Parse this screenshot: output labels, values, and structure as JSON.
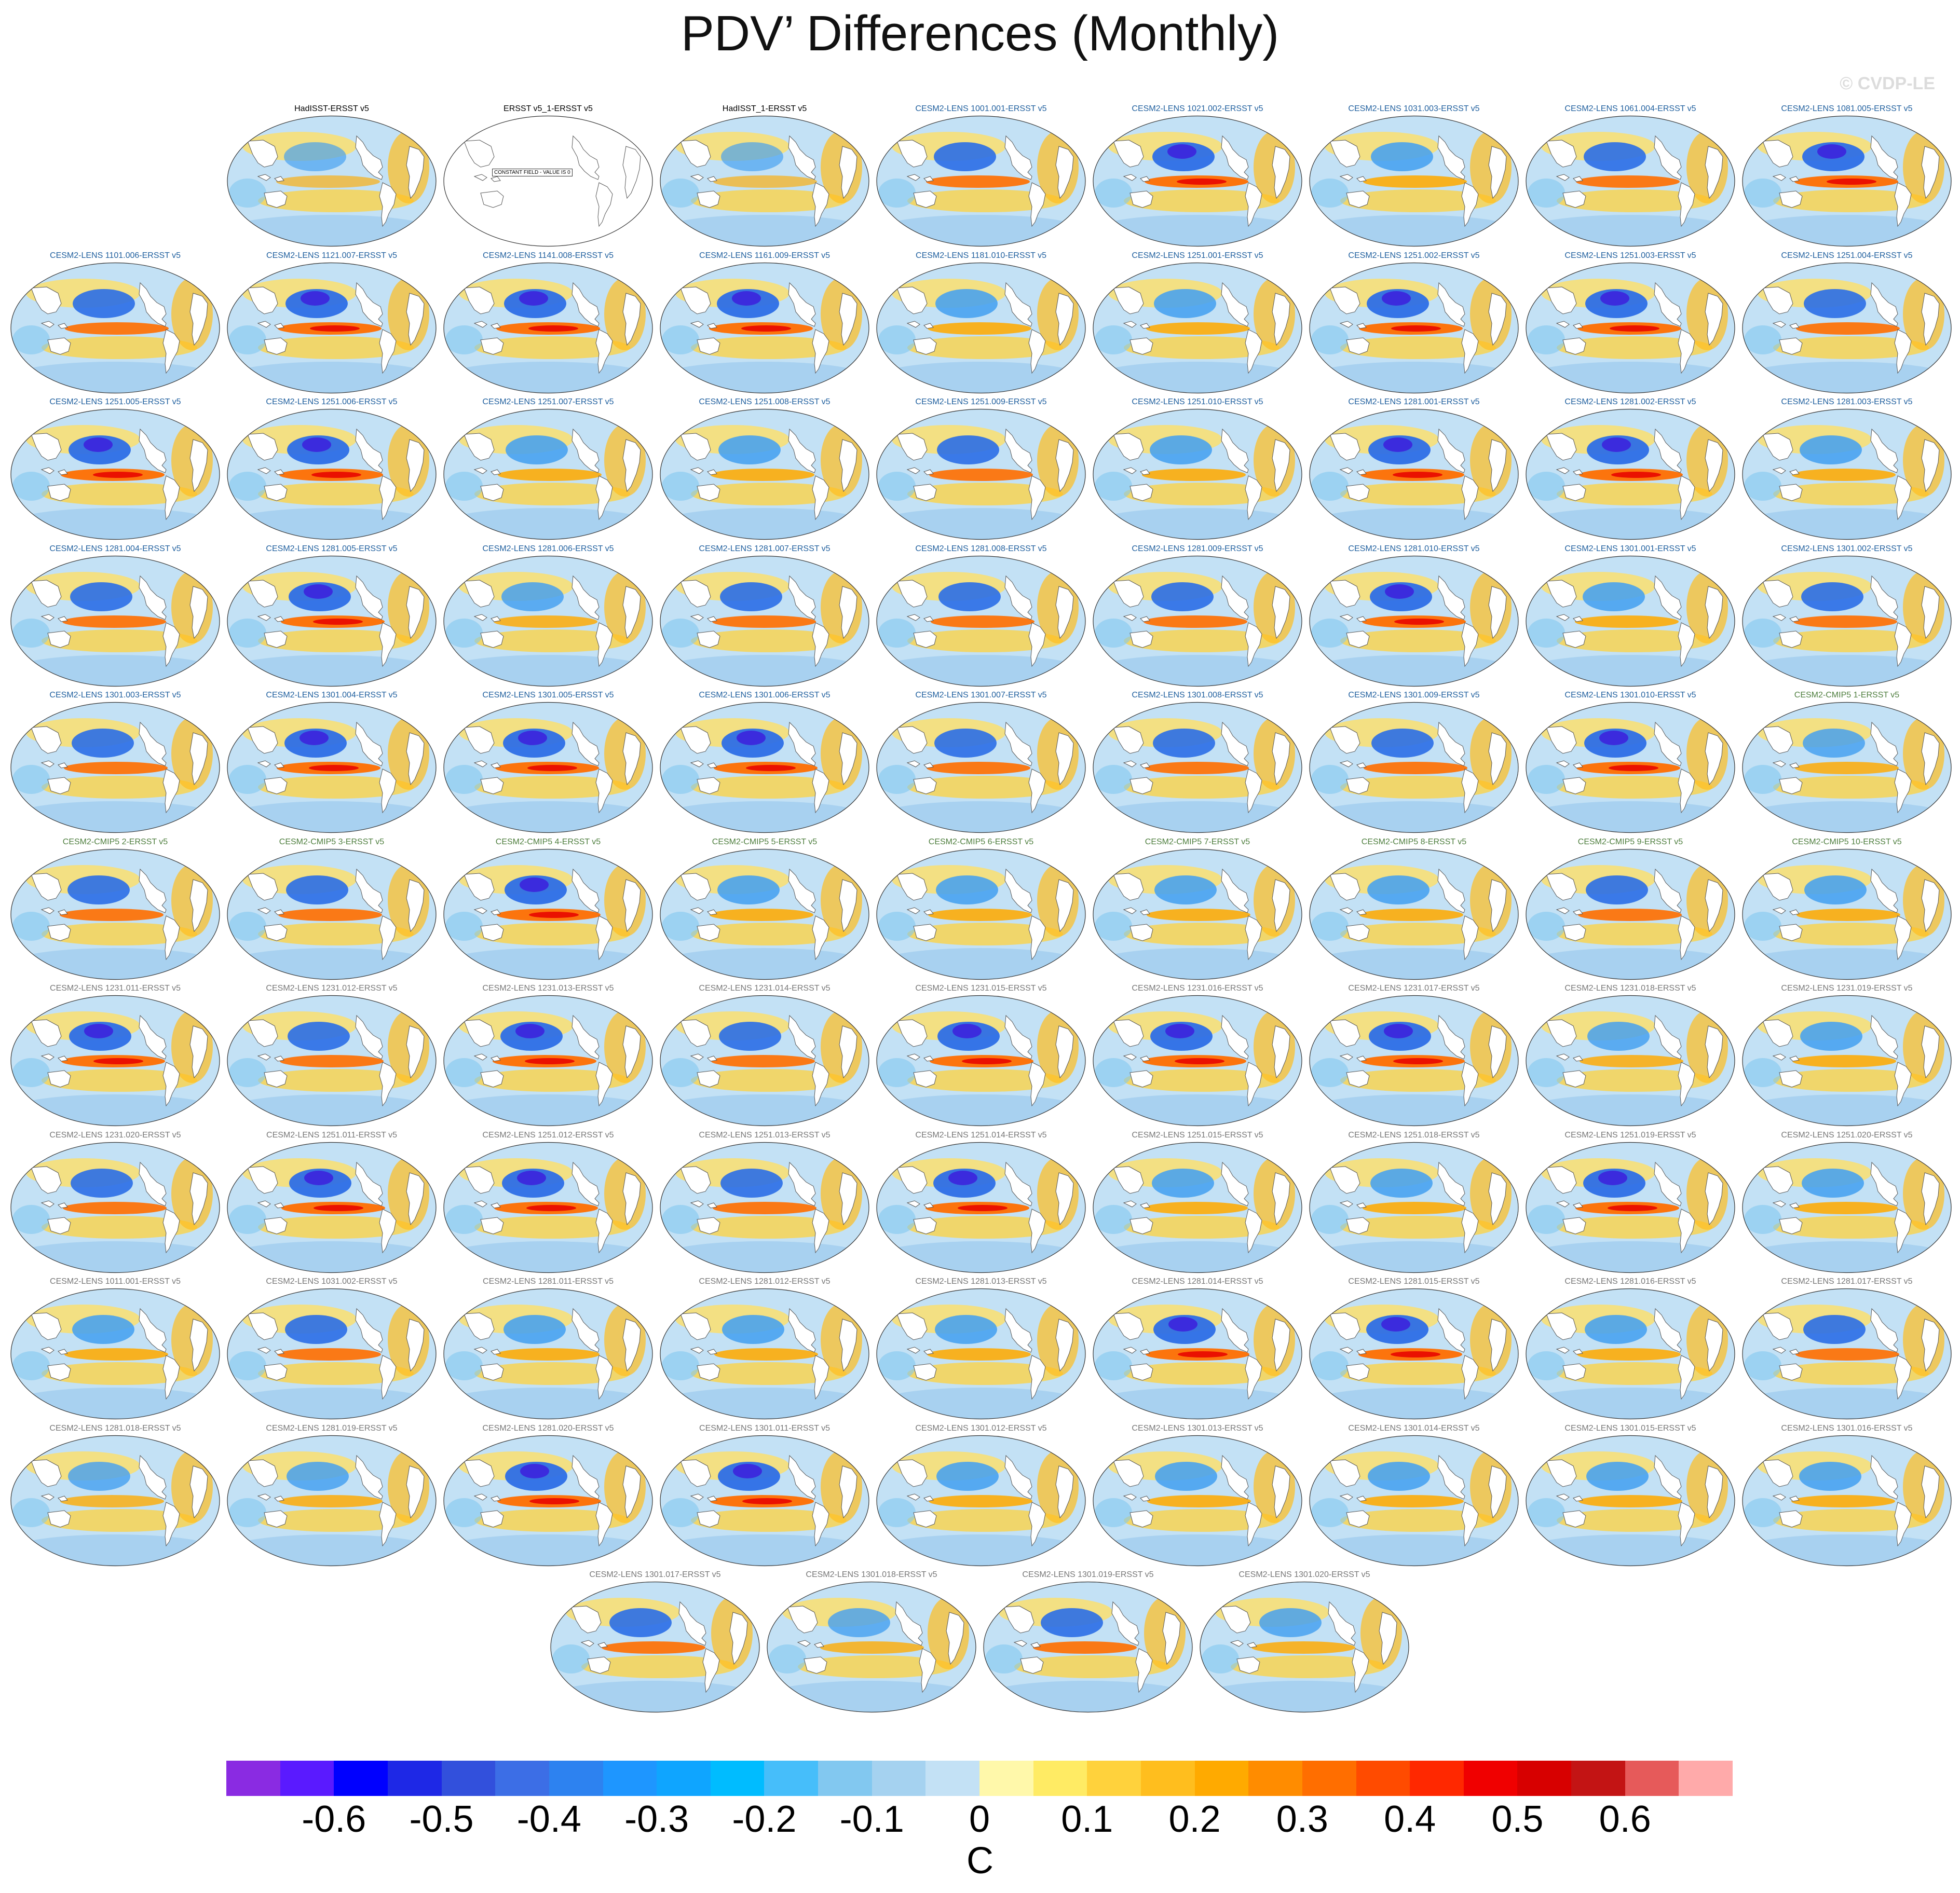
{
  "title": "PDV’ Differences (Monthly)",
  "watermark": "© CVDP-LE",
  "constant_field_note": "CONSTANT FIELD - VALUE IS 0",
  "title_colors": {
    "obs": "#000000",
    "lens": "#1f5f9e",
    "cmip5": "#4f7f3f",
    "gray": "#777777"
  },
  "panels": [
    {
      "label": "HadISST-ERSST v5",
      "group": "obs",
      "intensity": 0.25
    },
    {
      "label": "ERSST v5_1-ERSST v5",
      "group": "obs",
      "intensity": 0,
      "constant": true
    },
    {
      "label": "HadISST_1-ERSST v5",
      "group": "obs",
      "intensity": 0.25
    },
    {
      "label": "CESM2-LENS 1001.001-ERSST v5",
      "group": "lens",
      "intensity": 0.9
    },
    {
      "label": "CESM2-LENS 1021.002-ERSST v5",
      "group": "lens",
      "intensity": 1.0
    },
    {
      "label": "CESM2-LENS 1031.003-ERSST v5",
      "group": "lens",
      "intensity": 0.8
    },
    {
      "label": "CESM2-LENS 1061.004-ERSST v5",
      "group": "lens",
      "intensity": 0.9
    },
    {
      "label": "CESM2-LENS 1081.005-ERSST v5",
      "group": "lens",
      "intensity": 1.0
    },
    {
      "label": "CESM2-LENS 1101.006-ERSST v5",
      "group": "lens",
      "intensity": 0.9
    },
    {
      "label": "CESM2-LENS 1121.007-ERSST v5",
      "group": "lens",
      "intensity": 1.0
    },
    {
      "label": "CESM2-LENS 1141.008-ERSST v5",
      "group": "lens",
      "intensity": 1.0
    },
    {
      "label": "CESM2-LENS 1161.009-ERSST v5",
      "group": "lens",
      "intensity": 1.0
    },
    {
      "label": "CESM2-LENS 1181.010-ERSST v5",
      "group": "lens",
      "intensity": 0.8
    },
    {
      "label": "CESM2-LENS 1251.001-ERSST v5",
      "group": "lens",
      "intensity": 0.8
    },
    {
      "label": "CESM2-LENS 1251.002-ERSST v5",
      "group": "lens",
      "intensity": 1.0
    },
    {
      "label": "CESM2-LENS 1251.003-ERSST v5",
      "group": "lens",
      "intensity": 1.0
    },
    {
      "label": "CESM2-LENS 1251.004-ERSST v5",
      "group": "lens",
      "intensity": 0.9
    },
    {
      "label": "CESM2-LENS 1251.005-ERSST v5",
      "group": "lens",
      "intensity": 1.0
    },
    {
      "label": "CESM2-LENS 1251.006-ERSST v5",
      "group": "lens",
      "intensity": 1.0
    },
    {
      "label": "CESM2-LENS 1251.007-ERSST v5",
      "group": "lens",
      "intensity": 0.8
    },
    {
      "label": "CESM2-LENS 1251.008-ERSST v5",
      "group": "lens",
      "intensity": 0.8
    },
    {
      "label": "CESM2-LENS 1251.009-ERSST v5",
      "group": "lens",
      "intensity": 0.9
    },
    {
      "label": "CESM2-LENS 1251.010-ERSST v5",
      "group": "lens",
      "intensity": 0.8
    },
    {
      "label": "CESM2-LENS 1281.001-ERSST v5",
      "group": "lens",
      "intensity": 1.0
    },
    {
      "label": "CESM2-LENS 1281.002-ERSST v5",
      "group": "lens",
      "intensity": 1.0
    },
    {
      "label": "CESM2-LENS 1281.003-ERSST v5",
      "group": "lens",
      "intensity": 0.8
    },
    {
      "label": "CESM2-LENS 1281.004-ERSST v5",
      "group": "lens",
      "intensity": 0.9
    },
    {
      "label": "CESM2-LENS 1281.005-ERSST v5",
      "group": "lens",
      "intensity": 1.0
    },
    {
      "label": "CESM2-LENS 1281.006-ERSST v5",
      "group": "lens",
      "intensity": 0.7
    },
    {
      "label": "CESM2-LENS 1281.007-ERSST v5",
      "group": "lens",
      "intensity": 0.9
    },
    {
      "label": "CESM2-LENS 1281.008-ERSST v5",
      "group": "lens",
      "intensity": 0.9
    },
    {
      "label": "CESM2-LENS 1281.009-ERSST v5",
      "group": "lens",
      "intensity": 0.9
    },
    {
      "label": "CESM2-LENS 1281.010-ERSST v5",
      "group": "lens",
      "intensity": 1.0
    },
    {
      "label": "CESM2-LENS 1301.001-ERSST v5",
      "group": "lens",
      "intensity": 0.8
    },
    {
      "label": "CESM2-LENS 1301.002-ERSST v5",
      "group": "lens",
      "intensity": 0.9
    },
    {
      "label": "CESM2-LENS 1301.003-ERSST v5",
      "group": "lens",
      "intensity": 0.9
    },
    {
      "label": "CESM2-LENS 1301.004-ERSST v5",
      "group": "lens",
      "intensity": 1.0
    },
    {
      "label": "CESM2-LENS 1301.005-ERSST v5",
      "group": "lens",
      "intensity": 1.0
    },
    {
      "label": "CESM2-LENS 1301.006-ERSST v5",
      "group": "lens",
      "intensity": 1.0
    },
    {
      "label": "CESM2-LENS 1301.007-ERSST v5",
      "group": "lens",
      "intensity": 0.9
    },
    {
      "label": "CESM2-LENS 1301.008-ERSST v5",
      "group": "lens",
      "intensity": 0.9
    },
    {
      "label": "CESM2-LENS 1301.009-ERSST v5",
      "group": "lens",
      "intensity": 0.9
    },
    {
      "label": "CESM2-LENS 1301.010-ERSST v5",
      "group": "lens",
      "intensity": 1.0
    },
    {
      "label": "CESM2-CMIP5 1-ERSST v5",
      "group": "cmip5",
      "intensity": 0.7
    },
    {
      "label": "CESM2-CMIP5 2-ERSST v5",
      "group": "cmip5",
      "intensity": 0.9
    },
    {
      "label": "CESM2-CMIP5 3-ERSST v5",
      "group": "cmip5",
      "intensity": 0.9
    },
    {
      "label": "CESM2-CMIP5 4-ERSST v5",
      "group": "cmip5",
      "intensity": 1.0
    },
    {
      "label": "CESM2-CMIP5 5-ERSST v5",
      "group": "cmip5",
      "intensity": 0.8
    },
    {
      "label": "CESM2-CMIP5 6-ERSST v5",
      "group": "cmip5",
      "intensity": 0.8
    },
    {
      "label": "CESM2-CMIP5 7-ERSST v5",
      "group": "cmip5",
      "intensity": 0.8
    },
    {
      "label": "CESM2-CMIP5 8-ERSST v5",
      "group": "cmip5",
      "intensity": 0.8
    },
    {
      "label": "CESM2-CMIP5 9-ERSST v5",
      "group": "cmip5",
      "intensity": 0.9
    },
    {
      "label": "CESM2-CMIP5 10-ERSST v5",
      "group": "cmip5",
      "intensity": 0.8
    },
    {
      "label": "CESM2-LENS 1231.011-ERSST v5",
      "group": "gray",
      "intensity": 1.0
    },
    {
      "label": "CESM2-LENS 1231.012-ERSST v5",
      "group": "gray",
      "intensity": 0.9
    },
    {
      "label": "CESM2-LENS 1231.013-ERSST v5",
      "group": "gray",
      "intensity": 1.0
    },
    {
      "label": "CESM2-LENS 1231.014-ERSST v5",
      "group": "gray",
      "intensity": 0.9
    },
    {
      "label": "CESM2-LENS 1231.015-ERSST v5",
      "group": "gray",
      "intensity": 1.0
    },
    {
      "label": "CESM2-LENS 1231.016-ERSST v5",
      "group": "gray",
      "intensity": 1.0
    },
    {
      "label": "CESM2-LENS 1231.017-ERSST v5",
      "group": "gray",
      "intensity": 1.0
    },
    {
      "label": "CESM2-LENS 1231.018-ERSST v5",
      "group": "gray",
      "intensity": 0.7
    },
    {
      "label": "CESM2-LENS 1231.019-ERSST v5",
      "group": "gray",
      "intensity": 0.8
    },
    {
      "label": "CESM2-LENS 1231.020-ERSST v5",
      "group": "gray",
      "intensity": 0.9
    },
    {
      "label": "CESM2-LENS 1251.011-ERSST v5",
      "group": "gray",
      "intensity": 1.0
    },
    {
      "label": "CESM2-LENS 1251.012-ERSST v5",
      "group": "gray",
      "intensity": 1.0
    },
    {
      "label": "CESM2-LENS 1251.013-ERSST v5",
      "group": "gray",
      "intensity": 0.9
    },
    {
      "label": "CESM2-LENS 1251.014-ERSST v5",
      "group": "gray",
      "intensity": 1.0
    },
    {
      "label": "CESM2-LENS 1251.015-ERSST v5",
      "group": "gray",
      "intensity": 0.8
    },
    {
      "label": "CESM2-LENS 1251.018-ERSST v5",
      "group": "gray",
      "intensity": 0.8
    },
    {
      "label": "CESM2-LENS 1251.019-ERSST v5",
      "group": "gray",
      "intensity": 1.0
    },
    {
      "label": "CESM2-LENS 1251.020-ERSST v5",
      "group": "gray",
      "intensity": 0.8
    },
    {
      "label": "CESM2-LENS 1011.001-ERSST v5",
      "group": "gray",
      "intensity": 0.8
    },
    {
      "label": "CESM2-LENS 1031.002-ERSST v5",
      "group": "gray",
      "intensity": 0.9
    },
    {
      "label": "CESM2-LENS 1281.011-ERSST v5",
      "group": "gray",
      "intensity": 0.8
    },
    {
      "label": "CESM2-LENS 1281.012-ERSST v5",
      "group": "gray",
      "intensity": 0.8
    },
    {
      "label": "CESM2-LENS 1281.013-ERSST v5",
      "group": "gray",
      "intensity": 0.8
    },
    {
      "label": "CESM2-LENS 1281.014-ERSST v5",
      "group": "gray",
      "intensity": 1.0
    },
    {
      "label": "CESM2-LENS 1281.015-ERSST v5",
      "group": "gray",
      "intensity": 1.0
    },
    {
      "label": "CESM2-LENS 1281.016-ERSST v5",
      "group": "gray",
      "intensity": 0.8
    },
    {
      "label": "CESM2-LENS 1281.017-ERSST v5",
      "group": "gray",
      "intensity": 0.9
    },
    {
      "label": "CESM2-LENS 1281.018-ERSST v5",
      "group": "gray",
      "intensity": 0.6
    },
    {
      "label": "CESM2-LENS 1281.019-ERSST v5",
      "group": "gray",
      "intensity": 0.7
    },
    {
      "label": "CESM2-LENS 1281.020-ERSST v5",
      "group": "gray",
      "intensity": 1.0
    },
    {
      "label": "CESM2-LENS 1301.011-ERSST v5",
      "group": "gray",
      "intensity": 1.0
    },
    {
      "label": "CESM2-LENS 1301.012-ERSST v5",
      "group": "gray",
      "intensity": 0.8
    },
    {
      "label": "CESM2-LENS 1301.013-ERSST v5",
      "group": "gray",
      "intensity": 0.8
    },
    {
      "label": "CESM2-LENS 1301.014-ERSST v5",
      "group": "gray",
      "intensity": 0.8
    },
    {
      "label": "CESM2-LENS 1301.015-ERSST v5",
      "group": "gray",
      "intensity": 0.8
    },
    {
      "label": "CESM2-LENS 1301.016-ERSST v5",
      "group": "gray",
      "intensity": 0.8
    },
    {
      "label": "CESM2-LENS 1301.017-ERSST v5",
      "group": "gray",
      "intensity": 0.9
    },
    {
      "label": "CESM2-LENS 1301.018-ERSST v5",
      "group": "gray",
      "intensity": 0.6
    },
    {
      "label": "CESM2-LENS 1301.019-ERSST v5",
      "group": "gray",
      "intensity": 0.9
    },
    {
      "label": "CESM2-LENS 1301.020-ERSST v5",
      "group": "gray",
      "intensity": 0.7
    }
  ],
  "colorbar": {
    "units": "C",
    "colors": [
      "#8a2be2",
      "#5a1aff",
      "#0000ff",
      "#1e28e6",
      "#3250dc",
      "#3c6ee6",
      "#2d82f0",
      "#1e96ff",
      "#0fa5ff",
      "#00bcff",
      "#46befa",
      "#82c8f0",
      "#a5d2f0",
      "#c3e1f5",
      "#fff8aa",
      "#ffeb64",
      "#ffd23c",
      "#ffbe1e",
      "#ffaa00",
      "#ff8c00",
      "#ff6e00",
      "#ff4b00",
      "#ff2800",
      "#f00000",
      "#d70000",
      "#c31414",
      "#e65a5a",
      "#ffaaaa"
    ],
    "boundaries": [
      -0.7,
      -0.65,
      -0.6,
      -0.55,
      -0.5,
      -0.45,
      -0.4,
      -0.35,
      -0.3,
      -0.25,
      -0.2,
      -0.15,
      -0.1,
      -0.05,
      0,
      0.05,
      0.1,
      0.15,
      0.2,
      0.25,
      0.3,
      0.35,
      0.4,
      0.45,
      0.5,
      0.55,
      0.6,
      0.65
    ],
    "ticks": [
      {
        "value": -0.6,
        "label": "-0.6"
      },
      {
        "value": -0.5,
        "label": "-0.5"
      },
      {
        "value": -0.4,
        "label": "-0.4"
      },
      {
        "value": -0.3,
        "label": "-0.3"
      },
      {
        "value": -0.2,
        "label": "-0.2"
      },
      {
        "value": -0.1,
        "label": "-0.1"
      },
      {
        "value": 0,
        "label": "0"
      },
      {
        "value": 0.1,
        "label": "0.1"
      },
      {
        "value": 0.2,
        "label": "0.2"
      },
      {
        "value": 0.3,
        "label": "0.3"
      },
      {
        "value": 0.4,
        "label": "0.4"
      },
      {
        "value": 0.5,
        "label": "0.5"
      },
      {
        "value": 0.6,
        "label": "0.6"
      }
    ]
  }
}
